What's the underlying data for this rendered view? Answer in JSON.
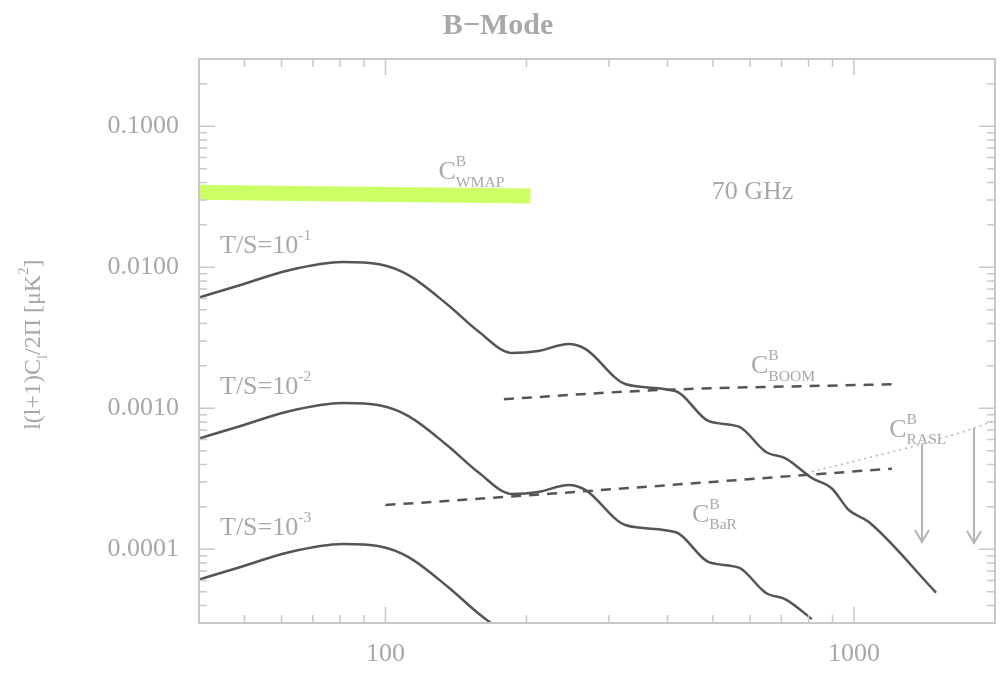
{
  "chart_data": {
    "type": "line",
    "title": "B−Mode",
    "ylabel": "l(l+1)C$_{l}$/2Π [μK$^{2}$]",
    "log": "xy",
    "grid": false,
    "legend": false,
    "marker": "none",
    "xlim": [
      40,
      2000
    ],
    "ylim": [
      3e-05,
      0.3
    ],
    "xticks": [
      {
        "value": 40,
        "label": null
      },
      {
        "value": 50,
        "label": null
      },
      {
        "value": 60,
        "label": null
      },
      {
        "value": 70,
        "label": null
      },
      {
        "value": 80,
        "label": null
      },
      {
        "value": 90,
        "label": null
      },
      100,
      {
        "value": 200,
        "label": null
      },
      {
        "value": 300,
        "label": null
      },
      {
        "value": 400,
        "label": null
      },
      {
        "value": 500,
        "label": null
      },
      {
        "value": 600,
        "label": null
      },
      {
        "value": 700,
        "label": null
      },
      {
        "value": 800,
        "label": null
      },
      {
        "value": 900,
        "label": null
      },
      1000,
      {
        "value": 2000,
        "label": null
      }
    ],
    "yticks": [
      {
        "value": 3e-05,
        "label": null
      },
      {
        "value": 4e-05,
        "label": null
      },
      {
        "value": 5e-05,
        "label": null
      },
      {
        "value": 6e-05,
        "label": null
      },
      {
        "value": 7e-05,
        "label": null
      },
      {
        "value": 8e-05,
        "label": null
      },
      {
        "value": 9e-05,
        "label": null
      },
      {
        "value": 0.0001,
        "label": "0.0001"
      },
      {
        "value": 0.0002,
        "label": null
      },
      {
        "value": 0.0003,
        "label": null
      },
      {
        "value": 0.0004,
        "label": null
      },
      {
        "value": 0.0005,
        "label": null
      },
      {
        "value": 0.0006,
        "label": null
      },
      {
        "value": 0.0007,
        "label": null
      },
      {
        "value": 0.0008,
        "label": null
      },
      {
        "value": 0.0009,
        "label": null
      },
      {
        "value": 0.001,
        "label": "0.0010"
      },
      {
        "value": 0.002,
        "label": null
      },
      {
        "value": 0.003,
        "label": null
      },
      {
        "value": 0.004,
        "label": null
      },
      {
        "value": 0.005,
        "label": null
      },
      {
        "value": 0.006,
        "label": null
      },
      {
        "value": 0.007,
        "label": null
      },
      {
        "value": 0.008,
        "label": null
      },
      {
        "value": 0.009,
        "label": null
      },
      {
        "value": 0.01,
        "label": "0.0100"
      },
      {
        "value": 0.02,
        "label": null
      },
      {
        "value": 0.03,
        "label": null
      },
      {
        "value": 0.04,
        "label": null
      },
      {
        "value": 0.05,
        "label": null
      },
      {
        "value": 0.06,
        "label": null
      },
      {
        "value": 0.07,
        "label": null
      },
      {
        "value": 0.08,
        "label": null
      },
      {
        "value": 0.09,
        "label": null
      },
      {
        "value": 0.1,
        "label": "0.1000"
      },
      {
        "value": 0.2,
        "label": null
      },
      {
        "value": 0.3,
        "label": null
      }
    ],
    "series": [
      {
        "name": "C$^{B}$$_{WMAP}$",
        "color": "#ccff66",
        "line_style": "solid",
        "x": [
          40,
          204
        ],
        "values": [
          0.034,
          0.032
        ]
      },
      {
        "name": "T/S=10$^{-1}$",
        "color": "#555555",
        "line_style": "solid",
        "x": [
          40,
          48.5,
          62,
          81,
          97,
          112,
          136,
          158,
          186,
          212,
          246,
          267,
          326,
          417,
          490,
          568,
          649,
          716,
          813,
          897,
          975,
          1076,
          1497
        ],
        "values": [
          0.0061,
          0.0074,
          0.0095,
          0.0109,
          0.0105,
          0.0088,
          0.0054,
          0.0035,
          0.00247,
          0.00255,
          0.00286,
          0.00264,
          0.00148,
          0.00132,
          0.00081,
          0.00074,
          0.00049,
          0.00044,
          0.00032,
          0.00027,
          0.00019,
          0.000156,
          4.93e-05
        ]
      },
      {
        "name": "T/S=10$^{-2}$",
        "color": "#555555",
        "line_style": "solid",
        "x": [
          40,
          48.5,
          62,
          81,
          97,
          112,
          136,
          158,
          186,
          212,
          246,
          267,
          326,
          417,
          490,
          568,
          649,
          716,
          813
        ],
        "values": [
          0.00061,
          0.00074,
          0.00095,
          0.00109,
          0.00105,
          0.00088,
          0.00054,
          0.00035,
          0.000247,
          0.000255,
          0.000286,
          0.000264,
          0.000148,
          0.000132,
          8.1e-05,
          7.4e-05,
          4.9e-05,
          4.4e-05,
          3.2e-05
        ]
      },
      {
        "name": "T/S=10$^{-3}$",
        "color": "#555555",
        "line_style": "solid",
        "x": [
          40,
          48.5,
          62,
          81,
          97,
          112,
          136,
          158,
          168
        ],
        "values": [
          6.1e-05,
          7.4e-05,
          9.5e-05,
          0.000109,
          0.000105,
          8.8e-05,
          5.4e-05,
          3.5e-05,
          3e-05
        ]
      },
      {
        "name": "C$^{B}$$_{BOOM}$",
        "color": "#555555",
        "line_style": "dashed",
        "x": [
          179,
          370,
          1205
        ],
        "values": [
          0.00116,
          0.00134,
          0.00148
        ]
      },
      {
        "name": "C$^{B}$$_{BaR}$",
        "color": "#555555",
        "line_style": "dashed",
        "x": [
          100,
          158,
          1205
        ],
        "values": [
          0.000206,
          0.000228,
          0.000373
        ]
      },
      {
        "name": "C$^{B}$$_{RASL}$",
        "color": "#b4b4b4",
        "line_style": "dotted",
        "x": [
          813,
          1331,
          1396,
          1803,
          1972
        ],
        "values": [
          0.000355,
          0.000535,
          0.00056,
          0.00072,
          0.00081
        ]
      }
    ],
    "annotations": [
      "70 GHz"
    ]
  }
}
